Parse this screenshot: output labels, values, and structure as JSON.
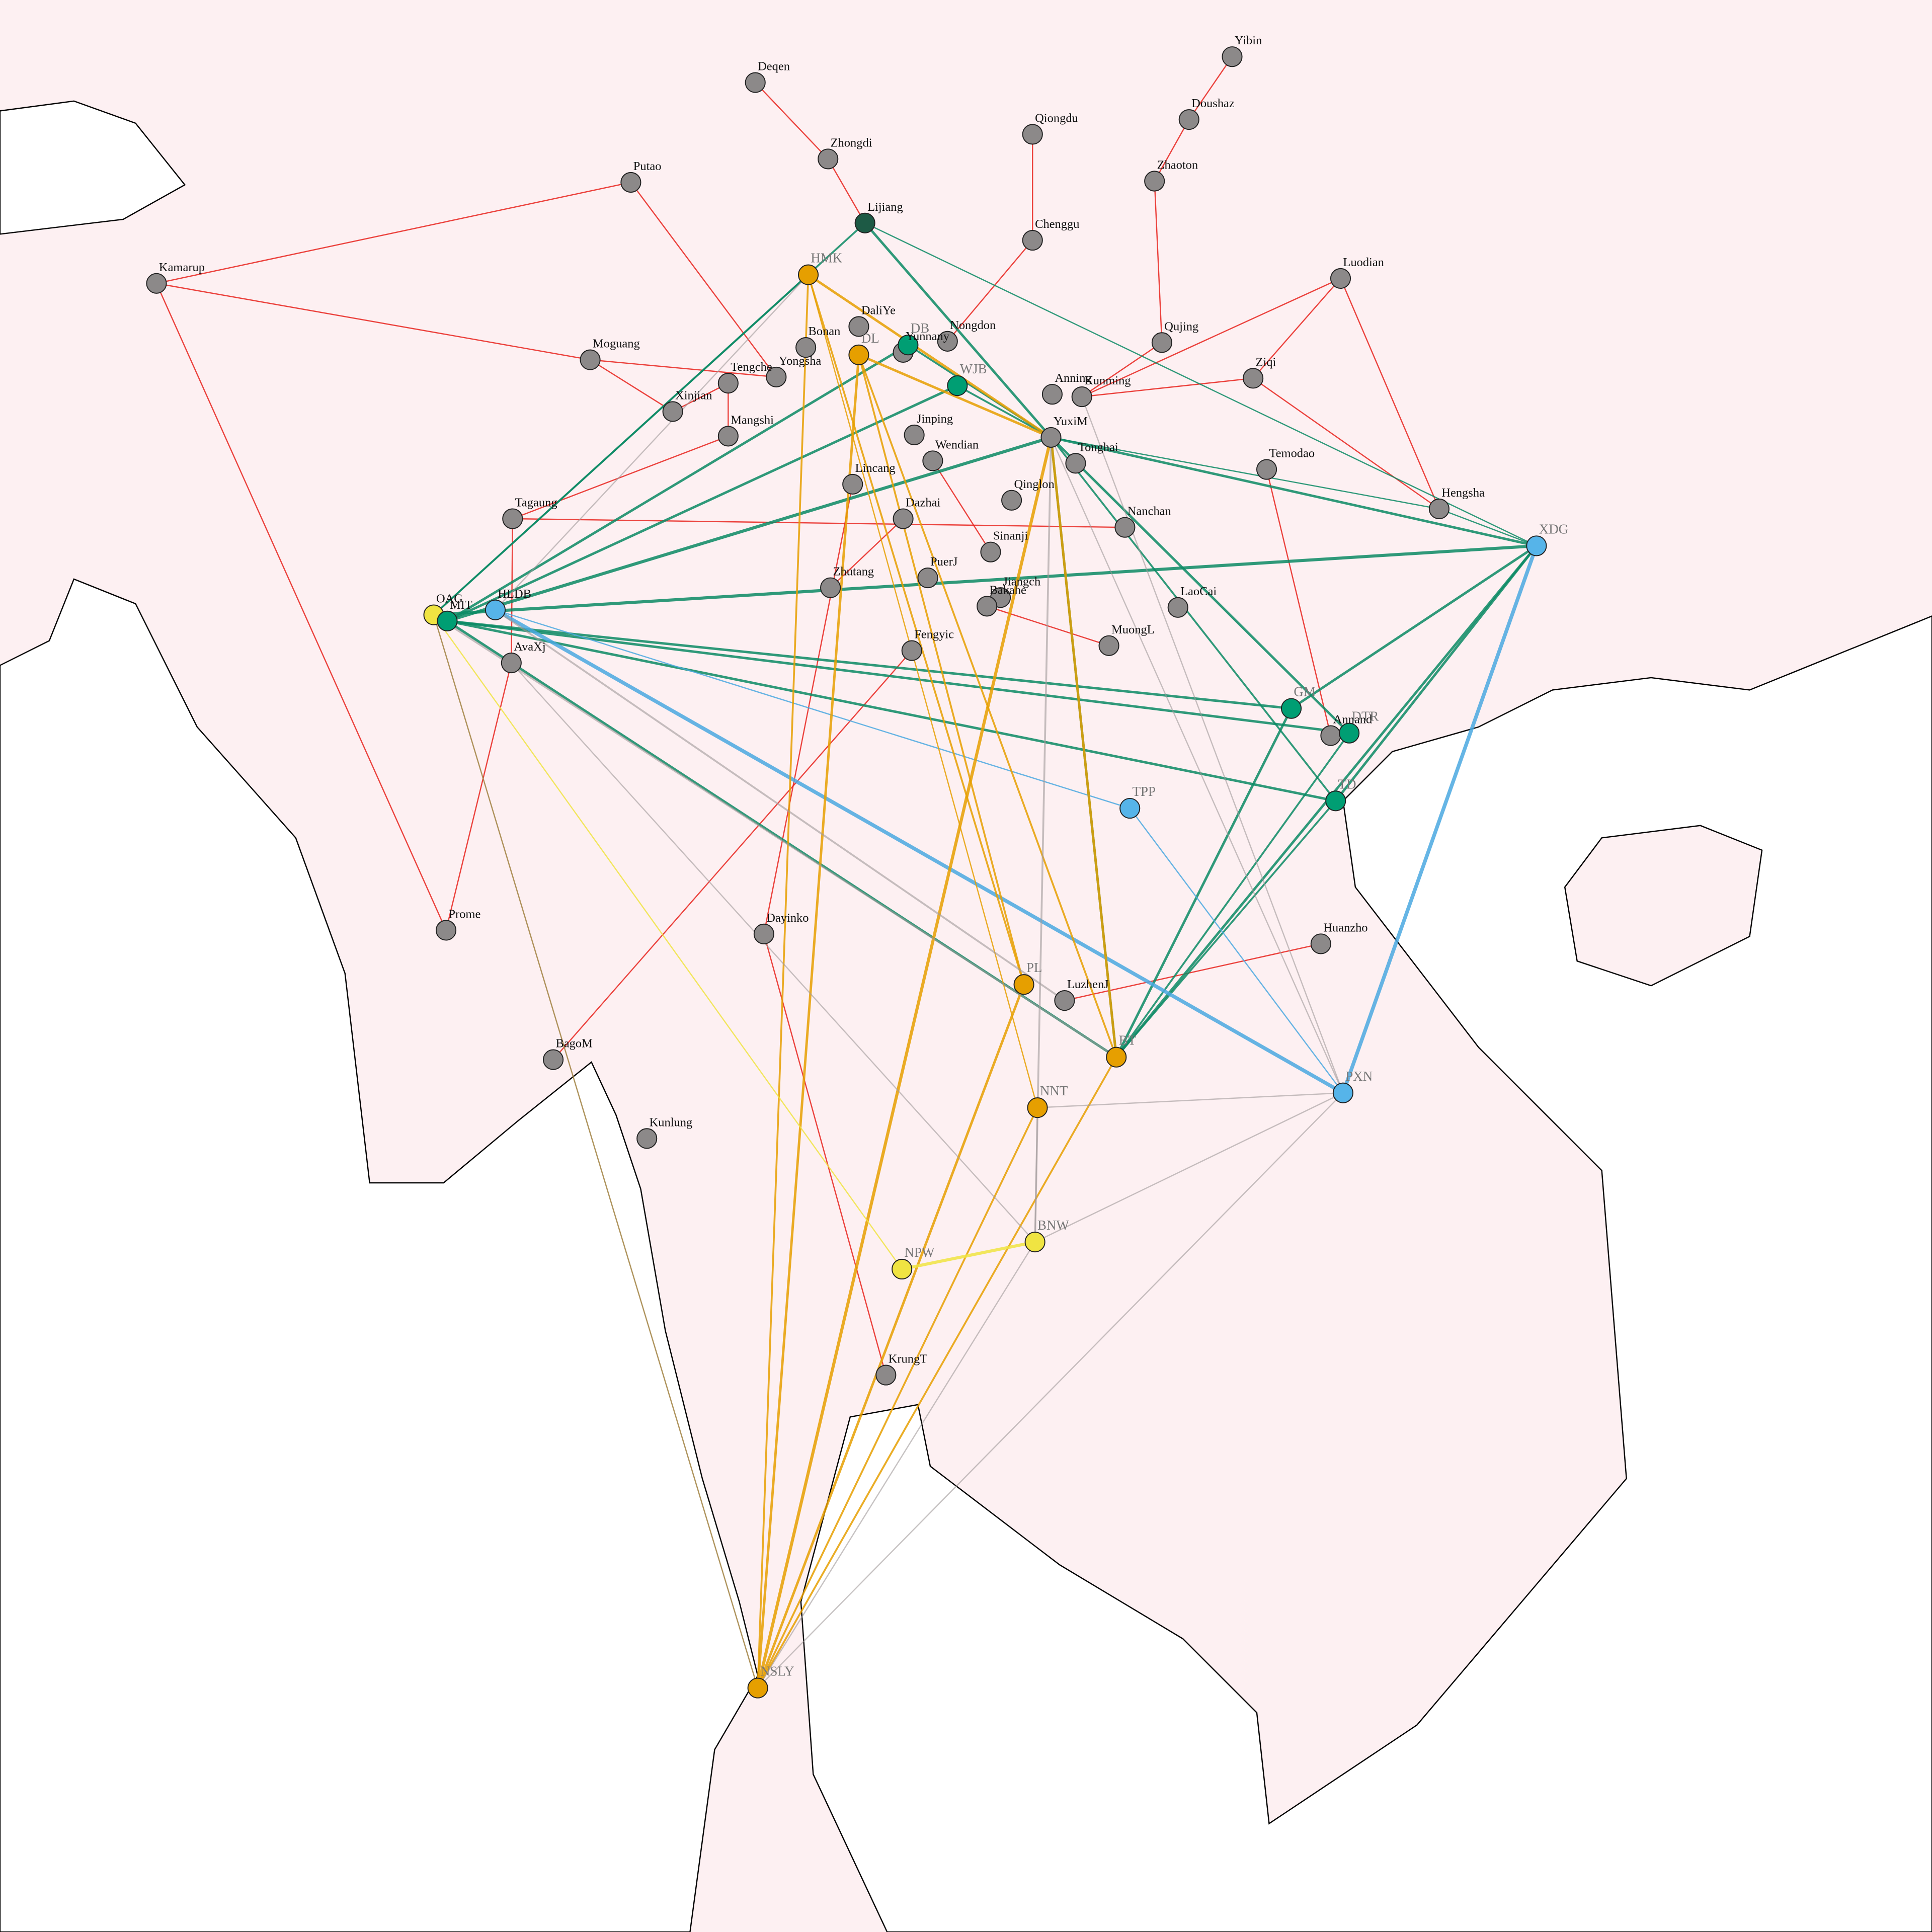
{
  "nodes": [
    {
      "label": "Deqen",
      "color": "#8c8989"
    },
    {
      "label": "Zhongdi",
      "color": "#8c8989"
    },
    {
      "label": "Lijiang",
      "color": "#1d5a45"
    },
    {
      "label": "Putao",
      "color": "#8c8989"
    },
    {
      "label": "Kamarup",
      "color": "#8c8989"
    },
    {
      "label": "Qiongdu",
      "color": "#8c8989"
    },
    {
      "label": "Chenggu",
      "color": "#8c8989"
    },
    {
      "label": "Yibin",
      "color": "#8c8989"
    },
    {
      "label": "Doushaz",
      "color": "#8c8989"
    },
    {
      "label": "Zhaoton",
      "color": "#8c8989"
    },
    {
      "label": "Luodian",
      "color": "#8c8989"
    },
    {
      "label": "Qujing",
      "color": "#8c8989"
    },
    {
      "label": "Ziqi",
      "color": "#8c8989"
    },
    {
      "label": "Moguang",
      "color": "#8c8989"
    },
    {
      "label": "Yongsha",
      "color": "#8c8989"
    },
    {
      "label": "Tengche",
      "color": "#8c8989"
    },
    {
      "label": "Xinjian",
      "color": "#8c8989"
    },
    {
      "label": "Mangshi",
      "color": "#8c8989"
    },
    {
      "label": "DaliYe",
      "color": "#8c8989"
    },
    {
      "label": "Bonan",
      "color": "#8c8989"
    },
    {
      "label": "Yunnany",
      "color": "#8c8989"
    },
    {
      "label": "Nongdon",
      "color": "#8c8989"
    },
    {
      "label": "Anning",
      "color": "#8c8989"
    },
    {
      "label": "Kunming",
      "color": "#8c8989"
    },
    {
      "label": "Jinping",
      "color": "#8c8989"
    },
    {
      "label": "Wendian",
      "color": "#8c8989"
    },
    {
      "label": "YuxiM",
      "color": "#8c8989"
    },
    {
      "label": "Tonghai",
      "color": "#8c8989"
    },
    {
      "label": "Lincang",
      "color": "#8c8989"
    },
    {
      "label": "Qinglon",
      "color": "#8c8989"
    },
    {
      "label": "Dazhai",
      "color": "#8c8989"
    },
    {
      "label": "Sinanji",
      "color": "#8c8989"
    },
    {
      "label": "Temodao",
      "color": "#8c8989"
    },
    {
      "label": "Hengsha",
      "color": "#8c8989"
    },
    {
      "label": "Nanchan",
      "color": "#8c8989"
    },
    {
      "label": "Tagaung",
      "color": "#8c8989"
    },
    {
      "label": "Zhutang",
      "color": "#8c8989"
    },
    {
      "label": "PuerJ",
      "color": "#8c8989"
    },
    {
      "label": "Jiangch",
      "color": "#8c8989"
    },
    {
      "label": "Bakahe",
      "color": "#8c8989"
    },
    {
      "label": "LaoCai",
      "color": "#8c8989"
    },
    {
      "label": "MuongL",
      "color": "#8c8989"
    },
    {
      "label": "Fengyic",
      "color": "#8c8989"
    },
    {
      "label": "AvaXj",
      "color": "#8c8989"
    },
    {
      "label": "Annand",
      "color": "#8c8989"
    },
    {
      "label": "Prome",
      "color": "#8c8989"
    },
    {
      "label": "Dayinko",
      "color": "#8c8989"
    },
    {
      "label": "Huanzho",
      "color": "#8c8989"
    },
    {
      "label": "LuzhenJ",
      "color": "#8c8989"
    },
    {
      "label": "BagoM",
      "color": "#8c8989"
    },
    {
      "label": "Kunlung",
      "color": "#8c8989"
    },
    {
      "label": "KrungT",
      "color": "#8c8989"
    },
    {
      "label": "HMK",
      "color": "#e69f00"
    },
    {
      "label": "DL",
      "color": "#e69f00"
    },
    {
      "label": "DB",
      "color": "#009e73"
    },
    {
      "label": "WJB",
      "color": "#009e73"
    },
    {
      "label": "XDG",
      "color": "#56b4e9"
    },
    {
      "label": "GM",
      "color": "#009e73"
    },
    {
      "label": "DTR",
      "color": "#009e73"
    },
    {
      "label": "TD",
      "color": "#009e73"
    },
    {
      "label": "TPP",
      "color": "#56b4e9"
    },
    {
      "label": "PL",
      "color": "#e69f00"
    },
    {
      "label": "BT",
      "color": "#e69f00"
    },
    {
      "label": "NNT",
      "color": "#e69f00"
    },
    {
      "label": "PXN",
      "color": "#56b4e9"
    },
    {
      "label": "BNW",
      "color": "#f0e442"
    },
    {
      "label": "NPW",
      "color": "#f0e442"
    },
    {
      "label": "NSLY",
      "color": "#e69f00"
    },
    {
      "label": "OAG",
      "color": "#f0e442"
    },
    {
      "label": "HLDB",
      "color": "#56b4e9"
    },
    {
      "label": "MIT",
      "color": "#009e73"
    }
  ]
}
